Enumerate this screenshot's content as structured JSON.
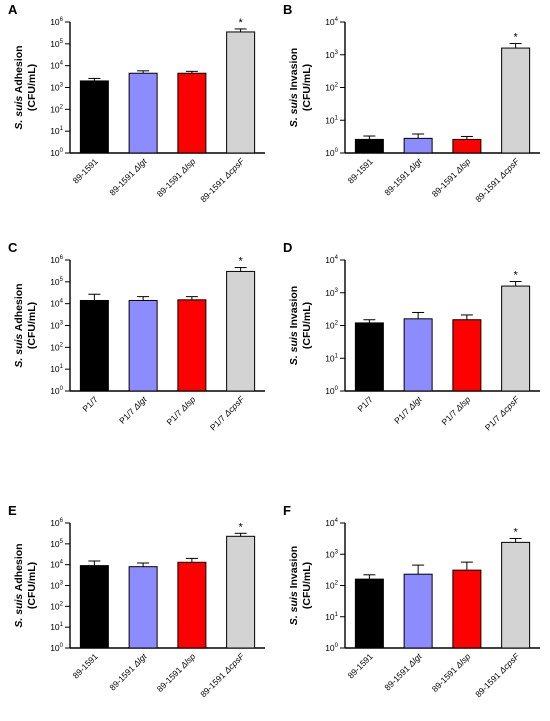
{
  "figure": {
    "colors": [
      "#000000",
      "#8c8cff",
      "#ff0000",
      "#d3d3d3"
    ],
    "chart_data": [
      {
        "panel_label": "A",
        "type": "bar",
        "ylabel": [
          "S. suis Adhesion",
          "(CFU/mL)"
        ],
        "yscale": "log",
        "ylim": [
          1,
          1000000
        ],
        "categories": [
          {
            "base": "89-1591",
            "mut": ""
          },
          {
            "base": "89-1591 ",
            "mut": "Δlgt"
          },
          {
            "base": "89-1591 ",
            "mut": "Δlsp"
          },
          {
            "base": "89-1591 ",
            "mut": "ΔcpsF"
          }
        ],
        "values": [
          2000,
          4500,
          4500,
          350000
        ],
        "errors": [
          2600,
          5800,
          5500,
          480000
        ],
        "significance": [
          "",
          "",
          "",
          "*"
        ]
      },
      {
        "panel_label": "B",
        "type": "bar",
        "ylabel": [
          "S. suis Invasion",
          "(CFU/mL)"
        ],
        "yscale": "log",
        "ylim": [
          1,
          10000
        ],
        "categories": [
          {
            "base": "89-1591",
            "mut": ""
          },
          {
            "base": "89-1591 ",
            "mut": "Δlgt"
          },
          {
            "base": "89-1591 ",
            "mut": "Δlsp"
          },
          {
            "base": "89-1591 ",
            "mut": "ΔcpsF"
          }
        ],
        "values": [
          2.6,
          2.8,
          2.6,
          1600
        ],
        "errors": [
          3.3,
          3.8,
          3.2,
          2200
        ],
        "significance": [
          "",
          "",
          "",
          "*"
        ]
      },
      {
        "panel_label": "C",
        "type": "bar",
        "ylabel": [
          "S. suis Adhesion",
          "(CFU/mL)"
        ],
        "yscale": "log",
        "ylim": [
          1,
          1000000
        ],
        "categories": [
          {
            "base": "P1/7",
            "mut": ""
          },
          {
            "base": "P1/7 ",
            "mut": "Δlgt"
          },
          {
            "base": "P1/7 ",
            "mut": "Δlsp"
          },
          {
            "base": "P1/7 ",
            "mut": "ΔcpsF"
          }
        ],
        "values": [
          14000,
          14000,
          15000,
          300000
        ],
        "errors": [
          27000,
          21000,
          21000,
          450000
        ],
        "significance": [
          "",
          "",
          "",
          "*"
        ]
      },
      {
        "panel_label": "D",
        "type": "bar",
        "ylabel": [
          "S. suis Invasion",
          "(CFU/mL)"
        ],
        "yscale": "log",
        "ylim": [
          1,
          10000
        ],
        "categories": [
          {
            "base": "P1/7",
            "mut": ""
          },
          {
            "base": "P1/7 ",
            "mut": "Δlgt"
          },
          {
            "base": "P1/7 ",
            "mut": "Δlsp"
          },
          {
            "base": "P1/7 ",
            "mut": "ΔcpsF"
          }
        ],
        "values": [
          120,
          160,
          150,
          1600
        ],
        "errors": [
          150,
          250,
          210,
          2200
        ],
        "significance": [
          "",
          "",
          "",
          "*"
        ]
      },
      {
        "panel_label": "E",
        "type": "bar",
        "ylabel": [
          "S. suis Adhesion",
          "(CFU/mL)"
        ],
        "yscale": "log",
        "ylim": [
          1,
          1000000
        ],
        "categories": [
          {
            "base": "89-1591",
            "mut": ""
          },
          {
            "base": "89-1591 ",
            "mut": "Δlgt"
          },
          {
            "base": "89-1591 ",
            "mut": "Δlsp"
          },
          {
            "base": "89-1591 ",
            "mut": "ΔcpsF"
          }
        ],
        "values": [
          9000,
          8000,
          13000,
          230000
        ],
        "errors": [
          15000,
          12000,
          20000,
          320000
        ],
        "significance": [
          "",
          "",
          "",
          "*"
        ]
      },
      {
        "panel_label": "F",
        "type": "bar",
        "ylabel": [
          "S. suis Invasion",
          "(CFU/mL)"
        ],
        "yscale": "log",
        "ylim": [
          1,
          10000
        ],
        "categories": [
          {
            "base": "89-1591",
            "mut": ""
          },
          {
            "base": "89-1591 ",
            "mut": "Δlgt"
          },
          {
            "base": "89-1591 ",
            "mut": "Δlsp"
          },
          {
            "base": "89-1591 ",
            "mut": "ΔcpsF"
          }
        ],
        "values": [
          160,
          230,
          310,
          2400
        ],
        "errors": [
          220,
          450,
          560,
          3200
        ],
        "significance": [
          "",
          "",
          "",
          "*"
        ]
      }
    ]
  }
}
